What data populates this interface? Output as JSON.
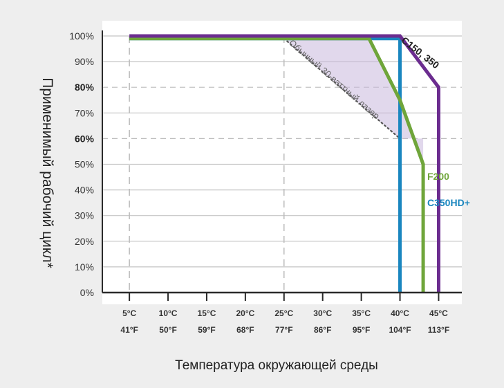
{
  "chart_data": {
    "type": "line",
    "ylabel": "Применимый рабочий цикл*",
    "xlabel": "Температура окружающей среды",
    "ylim": [
      0,
      100
    ],
    "xlim": [
      1.5,
      48
    ],
    "y_ticks": [
      {
        "value": 0,
        "label": "0%",
        "bold": false
      },
      {
        "value": 10,
        "label": "10%",
        "bold": false
      },
      {
        "value": 20,
        "label": "20%",
        "bold": false
      },
      {
        "value": 30,
        "label": "30%",
        "bold": false
      },
      {
        "value": 40,
        "label": "40%",
        "bold": false
      },
      {
        "value": 50,
        "label": "50%",
        "bold": false
      },
      {
        "value": 60,
        "label": "60%",
        "bold": true
      },
      {
        "value": 70,
        "label": "70%",
        "bold": false
      },
      {
        "value": 80,
        "label": "80%",
        "bold": true
      },
      {
        "value": 90,
        "label": "90%",
        "bold": false
      },
      {
        "value": 100,
        "label": "100%",
        "bold": false
      }
    ],
    "x_ticks": [
      {
        "value": 5,
        "c": "5°C",
        "f": "41°F"
      },
      {
        "value": 10,
        "c": "10°C",
        "f": "50°F"
      },
      {
        "value": 15,
        "c": "15°C",
        "f": "59°F"
      },
      {
        "value": 20,
        "c": "20°C",
        "f": "68°F"
      },
      {
        "value": 25,
        "c": "25°C",
        "f": "77°F"
      },
      {
        "value": 30,
        "c": "30°C",
        "f": "86°F"
      },
      {
        "value": 35,
        "c": "35°C",
        "f": "95°F"
      },
      {
        "value": 40,
        "c": "40°C",
        "f": "104°F"
      },
      {
        "value": 45,
        "c": "45°C",
        "f": "113°F"
      }
    ],
    "dashed_y": [
      60,
      80
    ],
    "dashed_x": [
      5,
      25
    ],
    "series": [
      {
        "name": "C150, 350",
        "color": "#6b2c8f",
        "points": [
          [
            5,
            100
          ],
          [
            40,
            100
          ],
          [
            45,
            80
          ],
          [
            45,
            0
          ]
        ]
      },
      {
        "name": "F200",
        "color": "#6fa53a",
        "points": [
          [
            5,
            99
          ],
          [
            36,
            99
          ],
          [
            40,
            75
          ],
          [
            43,
            50
          ],
          [
            43,
            0
          ]
        ]
      },
      {
        "name": "C350HD+",
        "color": "#1a86bf",
        "points": [
          [
            5,
            99
          ],
          [
            40,
            99
          ],
          [
            40,
            0
          ]
        ]
      }
    ],
    "reference": {
      "label": "Обычный 30-ваттный лазер",
      "color": "#555555",
      "points": [
        [
          25,
          99
        ],
        [
          40,
          60
        ]
      ]
    },
    "shaded_region": {
      "color": "#c8b8dc",
      "points": [
        [
          25,
          99
        ],
        [
          36,
          99
        ],
        [
          40,
          75
        ],
        [
          43,
          50
        ],
        [
          43,
          60
        ],
        [
          40,
          60
        ]
      ]
    }
  }
}
